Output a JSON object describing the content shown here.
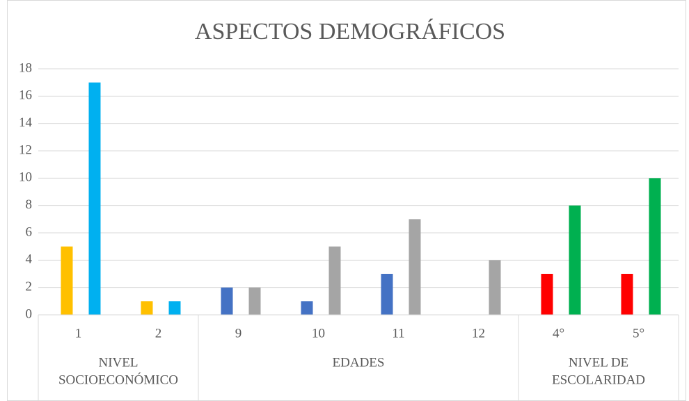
{
  "chart_data": {
    "type": "bar",
    "title": "ASPECTOS DEMOGRÁFICOS",
    "groups": [
      {
        "label": [
          "NIVEL",
          "SOCIOECONÓMICO"
        ],
        "categories": [
          "1",
          "2"
        ]
      },
      {
        "label": [
          "EDADES"
        ],
        "categories": [
          "9",
          "10",
          "11",
          "12"
        ]
      },
      {
        "label": [
          "NIVEL DE",
          "ESCOLARIDAD"
        ],
        "categories": [
          "4°",
          "5°"
        ]
      }
    ],
    "series": [
      {
        "colors": [
          "#FFC000",
          "#4472C4",
          "#FF0000"
        ],
        "values": [
          5,
          1,
          2,
          1,
          3,
          null,
          3,
          3
        ]
      },
      {
        "colors": [
          "#00B0F0",
          "#A5A5A5",
          "#00B050"
        ],
        "values": [
          17,
          1,
          2,
          5,
          7,
          4,
          8,
          10
        ]
      }
    ],
    "ylim": [
      0,
      18
    ],
    "yticks": [
      0,
      2,
      4,
      6,
      8,
      10,
      12,
      14,
      16,
      18
    ],
    "grid": true
  }
}
